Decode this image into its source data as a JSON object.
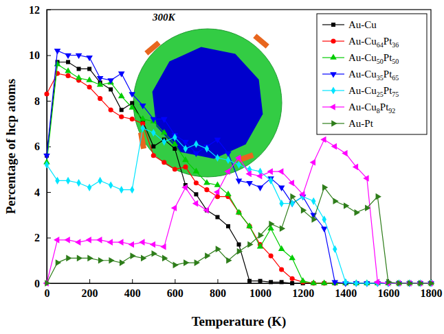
{
  "chart_data": {
    "type": "line",
    "x_label": "Temperature (K)",
    "y_label": "Percentage of hcp atoms",
    "annotation": "300K",
    "xlim": [
      0,
      1800
    ],
    "ylim": [
      0,
      12
    ],
    "xticks": [
      0,
      200,
      400,
      600,
      800,
      1000,
      1200,
      1400,
      1600,
      1800
    ],
    "yticks": [
      0,
      2,
      4,
      6,
      8,
      10,
      12
    ],
    "grid": false,
    "legend": "upper right",
    "x": [
      0,
      50,
      100,
      150,
      200,
      250,
      300,
      350,
      400,
      450,
      500,
      550,
      600,
      650,
      700,
      750,
      800,
      850,
      900,
      950,
      1000,
      1050,
      1100,
      1150,
      1200,
      1250,
      1300,
      1350,
      1400,
      1450,
      1500,
      1550,
      1600,
      1650,
      1700,
      1750,
      1800
    ],
    "series": [
      {
        "name": "Au-Cu",
        "color": "#000000",
        "marker": "square",
        "values": [
          5.6,
          9.7,
          9.7,
          9.4,
          9.4,
          8.8,
          8.5,
          7.6,
          7.9,
          7.1,
          6.0,
          6.3,
          5.9,
          4.3,
          3.9,
          3.2,
          2.9,
          2.5,
          1.7,
          0.1,
          0.1,
          0.05,
          0.05,
          0,
          0,
          0,
          0,
          0,
          0,
          0,
          0,
          0,
          0,
          0,
          0,
          0,
          0
        ]
      },
      {
        "name": "Au-Cu64Pt36",
        "color": "#ff0000",
        "marker": "circle",
        "values": [
          8.3,
          9.2,
          9.1,
          8.9,
          8.6,
          8.1,
          7.6,
          7.3,
          7.2,
          7.0,
          5.6,
          5.3,
          5.0,
          5.1,
          4.4,
          4.1,
          3.8,
          3.8,
          3.1,
          2.5,
          1.7,
          1.2,
          0.6,
          0.2,
          0.05,
          0,
          0,
          0,
          0,
          0,
          0,
          0,
          0,
          0,
          0,
          0,
          0
        ]
      },
      {
        "name": "Au-Cu50Pt50",
        "color": "#00cc00",
        "marker": "triangle-up",
        "values": [
          5.3,
          9.6,
          9.3,
          9.0,
          8.9,
          8.7,
          8.8,
          8.2,
          7.7,
          7.2,
          7.1,
          6.6,
          6.1,
          5.4,
          4.9,
          4.4,
          4.3,
          3.9,
          3.1,
          2.5,
          1.6,
          2.4,
          1.5,
          1.1,
          0.1,
          0,
          0,
          0,
          0,
          0,
          0,
          0,
          0,
          0,
          0,
          0,
          0
        ]
      },
      {
        "name": "Au-Cu35Pt65",
        "color": "#0000ff",
        "marker": "triangle-down",
        "values": [
          5.6,
          10.2,
          10.0,
          10.0,
          9.9,
          9.0,
          8.9,
          9.2,
          8.3,
          7.8,
          7.2,
          7.2,
          6.5,
          6.2,
          5.7,
          6.0,
          6.3,
          5.7,
          4.5,
          4.4,
          4.2,
          4.6,
          4.2,
          3.5,
          3.8,
          3.0,
          2.4,
          0.05,
          0,
          0,
          0,
          0,
          0,
          0,
          0,
          0,
          0
        ]
      },
      {
        "name": "Au-Cu25Pt75",
        "color": "#00e5ff",
        "marker": "diamond",
        "values": [
          5.2,
          4.5,
          4.5,
          4.4,
          4.2,
          4.5,
          4.3,
          4.1,
          4.1,
          6.8,
          6.6,
          6.2,
          6.4,
          5.9,
          6.1,
          5.9,
          5.5,
          5.4,
          5.2,
          5.0,
          4.9,
          4.5,
          3.5,
          3.5,
          3.8,
          3.6,
          2.8,
          1.5,
          0.05,
          0,
          0,
          0,
          0,
          0,
          0,
          0,
          0
        ]
      },
      {
        "name": "Au-Cu8Pt92",
        "color": "#ff00ff",
        "marker": "triangle-left",
        "values": [
          0,
          1.9,
          1.9,
          1.8,
          1.9,
          1.9,
          1.8,
          1.8,
          1.7,
          1.8,
          1.7,
          1.6,
          3.3,
          4.2,
          3.5,
          3.2,
          4.0,
          4.9,
          5.5,
          4.8,
          4.7,
          4.9,
          4.9,
          4.4,
          3.9,
          5.3,
          6.3,
          6.0,
          5.7,
          5.1,
          4.6,
          0.05,
          0,
          0,
          0,
          0,
          0
        ]
      },
      {
        "name": "Au-Pt",
        "color": "#2e7d1a",
        "marker": "triangle-right",
        "values": [
          0,
          0.9,
          1.1,
          1.1,
          1.1,
          1.0,
          1.0,
          0.9,
          1.2,
          1.1,
          1.3,
          1.1,
          0.8,
          0.9,
          0.9,
          1.2,
          1.5,
          1.0,
          1.4,
          1.7,
          2.1,
          2.6,
          2.4,
          3.8,
          3.2,
          2.8,
          4.2,
          3.6,
          3.4,
          3.1,
          3.3,
          3.8,
          0.05,
          0,
          0,
          0,
          0
        ]
      }
    ]
  }
}
